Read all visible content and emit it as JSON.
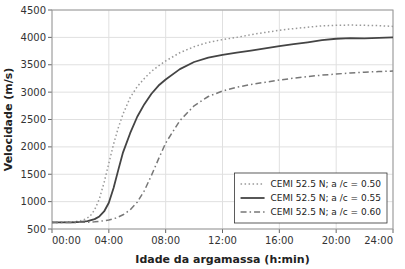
{
  "chart_data": {
    "type": "line",
    "xlabel": "Idade da argamassa (h:min)",
    "ylabel": "Velocidade (m/s)",
    "xlim": [
      0,
      1440
    ],
    "ylim": [
      500,
      4500
    ],
    "xticks": [
      {
        "value": 0,
        "label": "00:00"
      },
      {
        "value": 240,
        "label": "04:00"
      },
      {
        "value": 480,
        "label": "08:00"
      },
      {
        "value": 720,
        "label": "12:00"
      },
      {
        "value": 960,
        "label": "16:00"
      },
      {
        "value": 1200,
        "label": "20:00"
      },
      {
        "value": 1440,
        "label": "24:00"
      }
    ],
    "yticks": [
      500,
      1000,
      1500,
      2000,
      2500,
      3000,
      3500,
      4000,
      4500
    ],
    "grid": true,
    "legend": "lower right",
    "series": [
      {
        "name": "CEMI 52.5 N; a /c = 0.50",
        "color": "#999999",
        "line_style": "dotted",
        "x": [
          0,
          30,
          60,
          90,
          120,
          140,
          160,
          180,
          200,
          220,
          240,
          260,
          280,
          300,
          330,
          360,
          390,
          420,
          450,
          480,
          540,
          600,
          660,
          720,
          780,
          840,
          900,
          960,
          1020,
          1080,
          1140,
          1200,
          1260,
          1320,
          1380,
          1440
        ],
        "values": [
          620,
          620,
          625,
          630,
          650,
          680,
          730,
          850,
          1050,
          1350,
          1700,
          2050,
          2350,
          2600,
          2900,
          3100,
          3250,
          3380,
          3480,
          3570,
          3720,
          3830,
          3910,
          3960,
          4000,
          4050,
          4090,
          4130,
          4160,
          4185,
          4210,
          4220,
          4225,
          4220,
          4215,
          4200
        ]
      },
      {
        "name": "CEMI 52.5 N; a /c = 0.55",
        "color": "#444444",
        "line_style": "solid",
        "x": [
          0,
          30,
          60,
          90,
          120,
          150,
          180,
          200,
          220,
          240,
          260,
          280,
          300,
          330,
          360,
          390,
          420,
          450,
          480,
          540,
          600,
          660,
          720,
          780,
          840,
          900,
          960,
          1020,
          1080,
          1140,
          1200,
          1260,
          1320,
          1380,
          1440
        ],
        "values": [
          620,
          620,
          620,
          622,
          630,
          645,
          680,
          730,
          820,
          980,
          1250,
          1580,
          1900,
          2250,
          2550,
          2780,
          2970,
          3120,
          3230,
          3420,
          3550,
          3630,
          3680,
          3720,
          3760,
          3800,
          3840,
          3875,
          3910,
          3950,
          3975,
          3985,
          3980,
          3990,
          4000
        ]
      },
      {
        "name": "CEMI 52.5 N; a /c = 0.60",
        "color": "#777777",
        "line_style": "dashdot",
        "x": [
          0,
          30,
          60,
          90,
          120,
          150,
          180,
          210,
          240,
          270,
          300,
          330,
          360,
          390,
          420,
          450,
          480,
          540,
          600,
          660,
          720,
          780,
          840,
          900,
          960,
          1020,
          1080,
          1140,
          1200,
          1260,
          1320,
          1380,
          1440
        ],
        "values": [
          620,
          620,
          620,
          620,
          622,
          625,
          632,
          645,
          665,
          700,
          760,
          850,
          990,
          1200,
          1480,
          1780,
          2070,
          2480,
          2750,
          2920,
          3020,
          3090,
          3140,
          3180,
          3220,
          3255,
          3285,
          3310,
          3330,
          3350,
          3365,
          3375,
          3385
        ]
      }
    ]
  }
}
